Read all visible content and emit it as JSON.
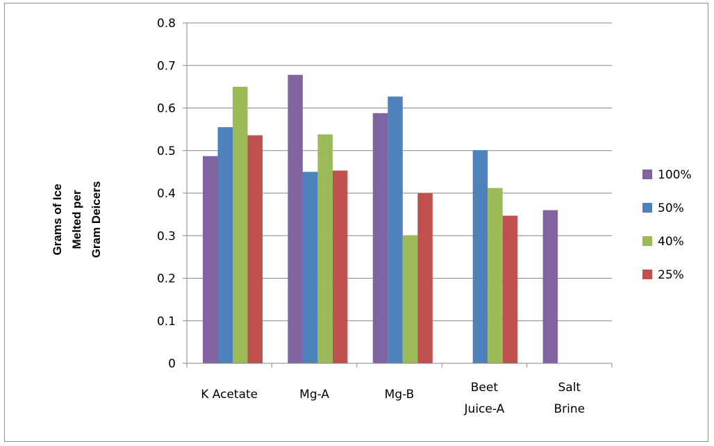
{
  "chart_data": {
    "type": "bar",
    "title": "",
    "xlabel": "",
    "ylabel_lines": [
      "Grams of Ice",
      "Melted per",
      "Gram Deicers"
    ],
    "ylim": [
      0,
      0.8
    ],
    "yticks": [
      "0",
      "0.1",
      "0.2",
      "0.3",
      "0.4",
      "0.5",
      "0.6",
      "0.7",
      "0.8"
    ],
    "categories": [
      [
        "K Acetate"
      ],
      [
        "Mg-A"
      ],
      [
        "Mg-B"
      ],
      [
        "Beet",
        "Juice-A"
      ],
      [
        "Salt",
        "Brine"
      ]
    ],
    "series": [
      {
        "name": "100%",
        "color": "#8064A2",
        "values": [
          0.487,
          0.678,
          0.588,
          null,
          0.36
        ]
      },
      {
        "name": "50%",
        "color": "#4F81BD",
        "values": [
          0.555,
          0.45,
          0.627,
          0.501,
          null
        ]
      },
      {
        "name": "40%",
        "color": "#9BBB59",
        "values": [
          0.65,
          0.538,
          0.3,
          0.412,
          null
        ]
      },
      {
        "name": "25%",
        "color": "#C0504D",
        "values": [
          0.536,
          0.453,
          0.4,
          0.347,
          null
        ]
      }
    ],
    "grid": true,
    "legend_position": "right"
  }
}
